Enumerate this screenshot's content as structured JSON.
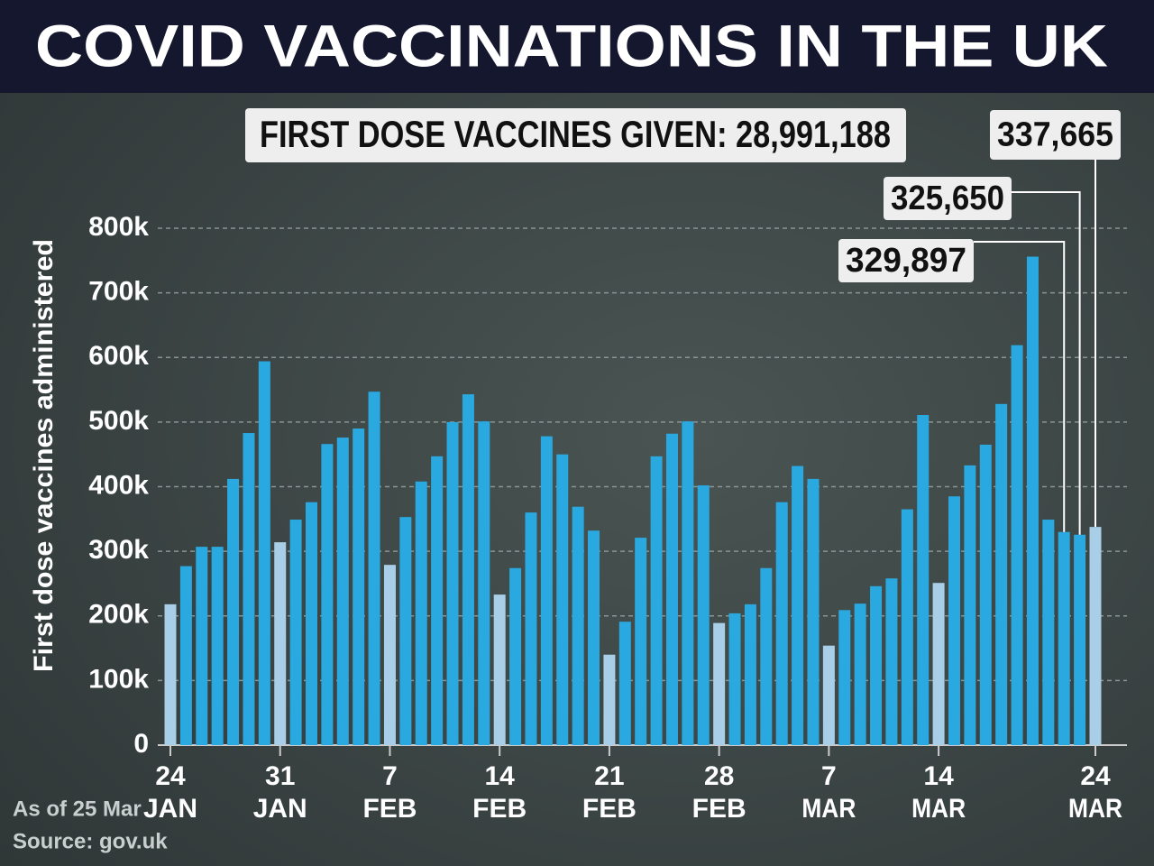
{
  "chart_data": {
    "type": "bar",
    "title": "COVID VACCINATIONS IN THE UK",
    "annotation": "FIRST DOSE VACCINES GIVEN: 28,991,188",
    "y_label": "First dose vaccines administered",
    "footnotes": [
      "As of 25 Mar",
      "Source: gov.uk"
    ],
    "categories": [
      [
        "24",
        "JAN"
      ],
      null,
      null,
      null,
      null,
      null,
      null,
      [
        "31",
        "JAN"
      ],
      null,
      null,
      null,
      null,
      null,
      null,
      [
        "7",
        "FEB"
      ],
      null,
      null,
      null,
      null,
      null,
      null,
      [
        "14",
        "FEB"
      ],
      null,
      null,
      null,
      null,
      null,
      null,
      [
        "21",
        "FEB"
      ],
      null,
      null,
      null,
      null,
      null,
      null,
      [
        "28",
        "FEB"
      ],
      null,
      null,
      null,
      null,
      null,
      null,
      [
        "7",
        "MAR"
      ],
      null,
      null,
      null,
      null,
      null,
      null,
      [
        "14",
        "MAR"
      ],
      null,
      null,
      null,
      null,
      null,
      null,
      null,
      null,
      null,
      [
        "24",
        "MAR"
      ]
    ],
    "values": [
      218000,
      277000,
      307000,
      307000,
      412000,
      483000,
      594000,
      314000,
      349000,
      376000,
      466000,
      476000,
      490000,
      547000,
      279000,
      353000,
      408000,
      447000,
      500000,
      543000,
      501000,
      233000,
      274000,
      360000,
      478000,
      450000,
      369000,
      332000,
      140000,
      191000,
      321000,
      447000,
      482000,
      501000,
      402000,
      189000,
      204000,
      218000,
      274000,
      376000,
      432000,
      412000,
      154000,
      209000,
      219000,
      246000,
      258000,
      365000,
      511000,
      251000,
      385000,
      433000,
      465000,
      528000,
      619000,
      756000,
      349000,
      329897,
      325650,
      337665
    ],
    "value_labels": [
      null,
      null,
      null,
      null,
      null,
      null,
      null,
      null,
      null,
      null,
      null,
      null,
      null,
      null,
      null,
      null,
      null,
      null,
      null,
      null,
      null,
      null,
      null,
      null,
      null,
      null,
      null,
      null,
      null,
      null,
      null,
      null,
      null,
      null,
      null,
      null,
      null,
      null,
      null,
      null,
      null,
      null,
      null,
      null,
      null,
      null,
      null,
      null,
      null,
      null,
      null,
      null,
      null,
      null,
      null,
      null,
      null,
      "329,897",
      "325,650",
      "337,665"
    ],
    "colors": [
      "#a9cfe8",
      "#2aa9e0",
      "#2aa9e0",
      "#2aa9e0",
      "#2aa9e0",
      "#2aa9e0",
      "#2aa9e0",
      "#a9cfe8",
      "#2aa9e0",
      "#2aa9e0",
      "#2aa9e0",
      "#2aa9e0",
      "#2aa9e0",
      "#2aa9e0",
      "#a9cfe8",
      "#2aa9e0",
      "#2aa9e0",
      "#2aa9e0",
      "#2aa9e0",
      "#2aa9e0",
      "#2aa9e0",
      "#a9cfe8",
      "#2aa9e0",
      "#2aa9e0",
      "#2aa9e0",
      "#2aa9e0",
      "#2aa9e0",
      "#2aa9e0",
      "#a9cfe8",
      "#2aa9e0",
      "#2aa9e0",
      "#2aa9e0",
      "#2aa9e0",
      "#2aa9e0",
      "#2aa9e0",
      "#a9cfe8",
      "#2aa9e0",
      "#2aa9e0",
      "#2aa9e0",
      "#2aa9e0",
      "#2aa9e0",
      "#2aa9e0",
      "#a9cfe8",
      "#2aa9e0",
      "#2aa9e0",
      "#2aa9e0",
      "#2aa9e0",
      "#2aa9e0",
      "#2aa9e0",
      "#a9cfe8",
      "#2aa9e0",
      "#2aa9e0",
      "#2aa9e0",
      "#2aa9e0",
      "#2aa9e0",
      "#2aa9e0",
      "#2aa9e0",
      "#2aa9e0",
      "#2aa9e0",
      "#a9cfe8"
    ],
    "ylim": [
      0,
      800000
    ],
    "yticks": [
      0,
      {
        "value": 100000,
        "label": "100k"
      },
      {
        "value": 200000,
        "label": "200k"
      },
      {
        "value": 300000,
        "label": "300k"
      },
      {
        "value": 400000,
        "label": "400k"
      },
      {
        "value": 500000,
        "label": "500k"
      },
      {
        "value": 600000,
        "label": "600k"
      },
      {
        "value": 700000,
        "label": "700k"
      },
      {
        "value": 800000,
        "label": "800k"
      }
    ],
    "grid": true
  }
}
